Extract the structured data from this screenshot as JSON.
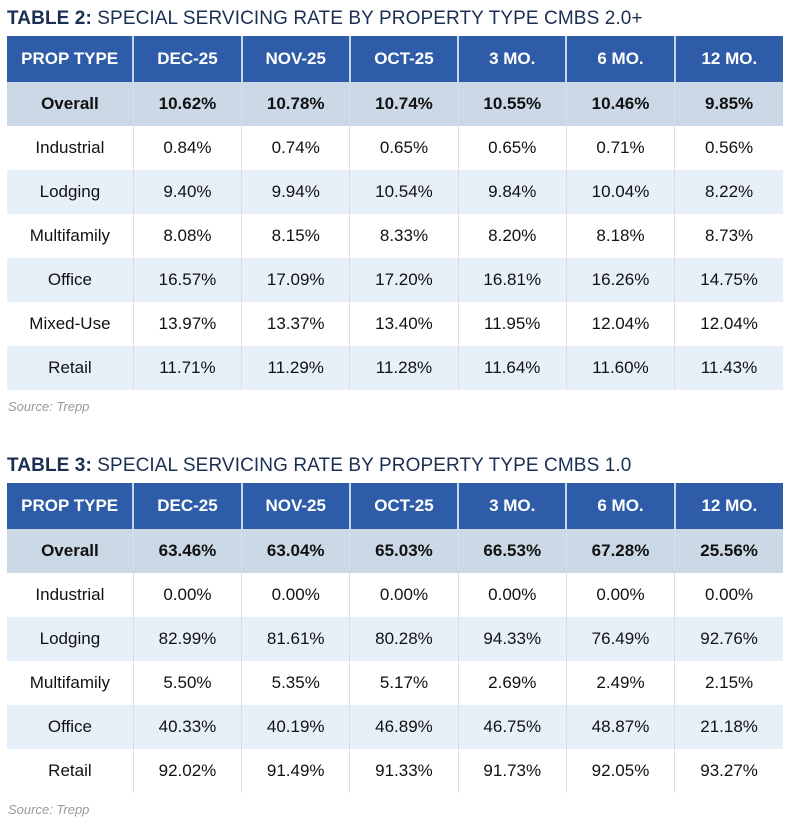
{
  "tables": [
    {
      "title_prefix": "TABLE 2:",
      "title_text": " SPECIAL SERVICING RATE BY PROPERTY TYPE CMBS 2.0+",
      "headers": [
        "PROP TYPE",
        "DEC-25",
        "NOV-25",
        "OCT-25",
        "3 MO.",
        "6 MO.",
        "12 MO."
      ],
      "rows": [
        [
          "Overall",
          "10.62%",
          "10.78%",
          "10.74%",
          "10.55%",
          "10.46%",
          "9.85%"
        ],
        [
          "Industrial",
          "0.84%",
          "0.74%",
          "0.65%",
          "0.65%",
          "0.71%",
          "0.56%"
        ],
        [
          "Lodging",
          "9.40%",
          "9.94%",
          "10.54%",
          "9.84%",
          "10.04%",
          "8.22%"
        ],
        [
          "Multifamily",
          "8.08%",
          "8.15%",
          "8.33%",
          "8.20%",
          "8.18%",
          "8.73%"
        ],
        [
          "Office",
          "16.57%",
          "17.09%",
          "17.20%",
          "16.81%",
          "16.26%",
          "14.75%"
        ],
        [
          "Mixed-Use",
          "13.97%",
          "13.37%",
          "13.40%",
          "11.95%",
          "12.04%",
          "12.04%"
        ],
        [
          "Retail",
          "11.71%",
          "11.29%",
          "11.28%",
          "11.64%",
          "11.60%",
          "11.43%"
        ]
      ],
      "source": "Source: Trepp"
    },
    {
      "title_prefix": "TABLE 3:",
      "title_text": " SPECIAL SERVICING RATE BY PROPERTY TYPE CMBS 1.0",
      "headers": [
        "PROP TYPE",
        "DEC-25",
        "NOV-25",
        "OCT-25",
        "3 MO.",
        "6 MO.",
        "12 MO."
      ],
      "rows": [
        [
          "Overall",
          "63.46%",
          "63.04%",
          "65.03%",
          "66.53%",
          "67.28%",
          "25.56%"
        ],
        [
          "Industrial",
          "0.00%",
          "0.00%",
          "0.00%",
          "0.00%",
          "0.00%",
          "0.00%"
        ],
        [
          "Lodging",
          "82.99%",
          "81.61%",
          "80.28%",
          "94.33%",
          "76.49%",
          "92.76%"
        ],
        [
          "Multifamily",
          "5.50%",
          "5.35%",
          "5.17%",
          "2.69%",
          "2.49%",
          "2.15%"
        ],
        [
          "Office",
          "40.33%",
          "40.19%",
          "46.89%",
          "46.75%",
          "48.87%",
          "21.18%"
        ],
        [
          "Retail",
          "92.02%",
          "91.49%",
          "91.33%",
          "91.73%",
          "92.05%",
          "93.27%"
        ]
      ],
      "source": "Source: Trepp"
    }
  ],
  "colors": {
    "header": "#2f5ca8",
    "overall_row": "#cbd9e7",
    "alt_row": "#e7eff8",
    "title": "#1b2f52"
  }
}
